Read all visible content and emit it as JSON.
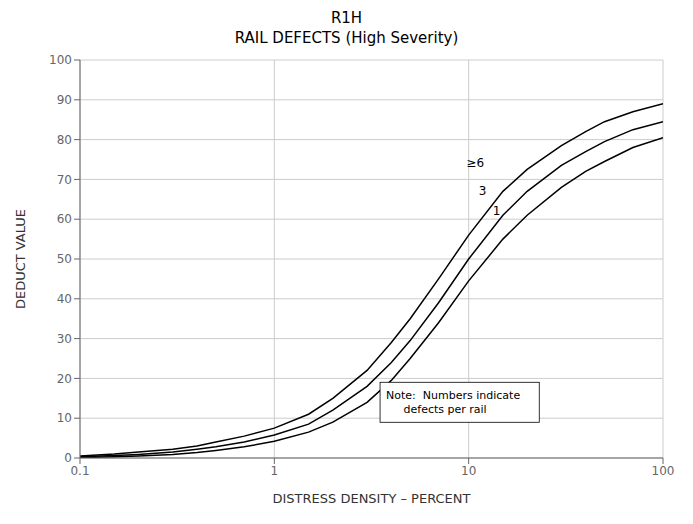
{
  "chart_data": {
    "type": "line",
    "title": "R1H",
    "subtitle": "RAIL DEFECTS (High Severity)",
    "x_label": "DISTRESS DENSITY – PERCENT",
    "y_label": "DEDUCT VALUE",
    "log": "x",
    "grid": true,
    "xlim": [
      0.1,
      100
    ],
    "ylim": [
      0,
      100
    ],
    "xticks": [
      0.1,
      1,
      10,
      100
    ],
    "yticks": [
      0,
      10,
      20,
      30,
      40,
      50,
      60,
      70,
      80,
      90,
      100
    ],
    "x": [
      0.1,
      0.15,
      0.2,
      0.3,
      0.4,
      0.5,
      0.7,
      1.0,
      1.5,
      2.0,
      3.0,
      4.0,
      5.0,
      7.0,
      10.0,
      15.0,
      20.0,
      30.0,
      40.0,
      50.0,
      70.0,
      100.0
    ],
    "series": [
      {
        "name": "≥6",
        "color": "#000000",
        "values": [
          0.5,
          1.0,
          1.5,
          2.2,
          3.0,
          4.0,
          5.5,
          7.5,
          11.0,
          15.0,
          22.0,
          29.0,
          35.0,
          45.0,
          56.0,
          67.0,
          72.5,
          78.5,
          82.0,
          84.5,
          87.0,
          89.0
        ]
      },
      {
        "name": "3",
        "color": "#000000",
        "values": [
          0.3,
          0.6,
          0.9,
          1.5,
          2.2,
          2.8,
          4.0,
          5.8,
          8.5,
          12.0,
          18.0,
          24.0,
          29.5,
          39.0,
          50.0,
          61.0,
          67.0,
          73.5,
          77.0,
          79.5,
          82.5,
          84.5
        ]
      },
      {
        "name": "1",
        "color": "#000000",
        "values": [
          0.1,
          0.3,
          0.5,
          0.9,
          1.4,
          1.9,
          2.8,
          4.2,
          6.5,
          9.0,
          14.0,
          19.5,
          25.0,
          34.0,
          44.5,
          55.0,
          61.0,
          68.0,
          72.0,
          74.5,
          78.0,
          80.5
        ]
      }
    ],
    "annotations": [
      {
        "text": "≥6",
        "x": 9.5,
        "y": 74.0
      },
      {
        "text": "3",
        "x": 11.0,
        "y": 67.0
      },
      {
        "text": "1",
        "x": 13.0,
        "y": 62.0
      },
      {
        "text": "Note:  Numbers indicate\n     defects per rail",
        "x": 3.5,
        "y": 14.0
      }
    ]
  }
}
